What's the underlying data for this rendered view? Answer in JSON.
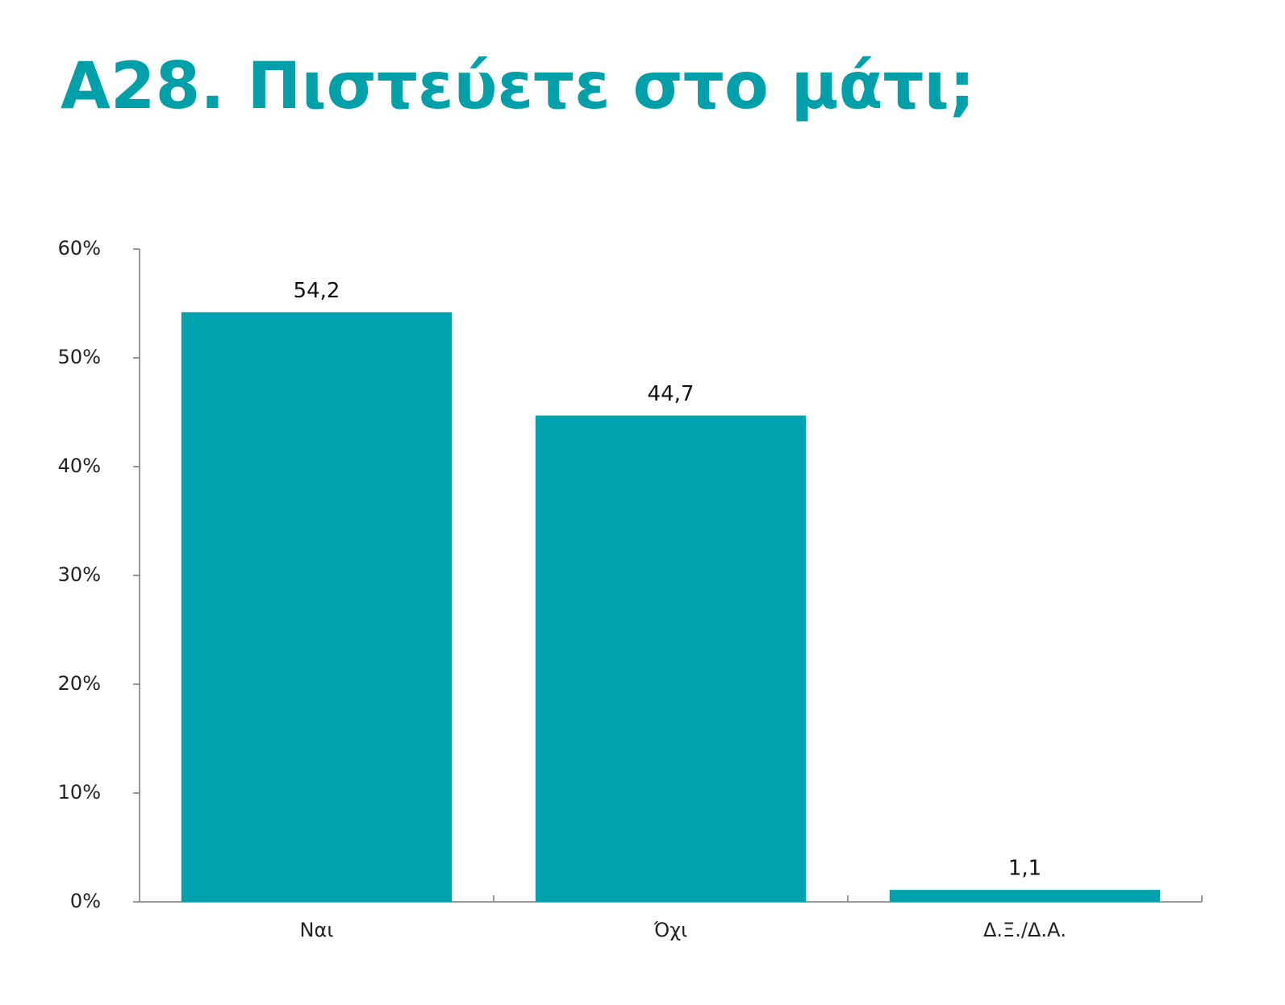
{
  "chart_data": {
    "type": "bar",
    "title": "Α28. Πιστεύετε στο μάτι;",
    "categories": [
      "Ναι",
      "Όχι",
      "Δ.Ξ./Δ.Α."
    ],
    "values": [
      54.2,
      44.7,
      1.1
    ],
    "value_labels": [
      "54,2",
      "44,7",
      "1,1"
    ],
    "color": "#00a3ad",
    "ylim": [
      0,
      60
    ],
    "yticks": [
      {
        "value": 0,
        "label": "0%"
      },
      {
        "value": 10,
        "label": "10%"
      },
      {
        "value": 20,
        "label": "20%"
      },
      {
        "value": 30,
        "label": "30%"
      },
      {
        "value": 40,
        "label": "40%"
      },
      {
        "value": 50,
        "label": "50%"
      },
      {
        "value": 60,
        "label": "60%"
      }
    ]
  }
}
